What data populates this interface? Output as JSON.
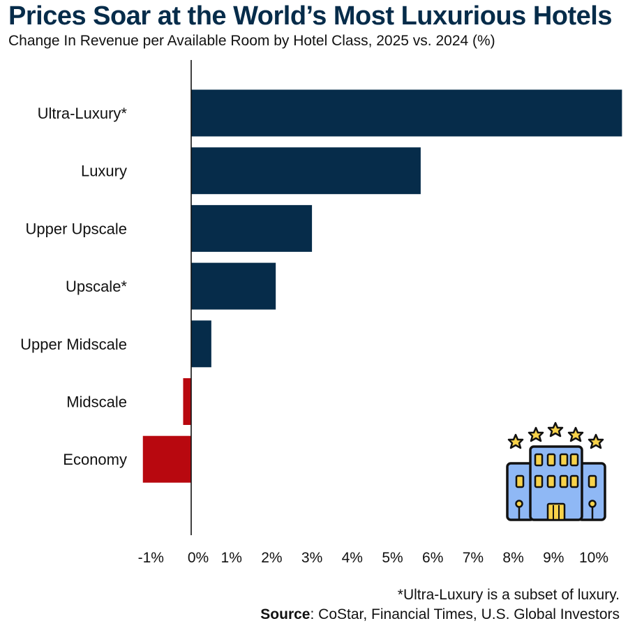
{
  "title": "Prices Soar at the World’s Most Luxurious Hotels",
  "subtitle": "Change In Revenue per Available Room by Hotel Class, 2025 vs. 2024 (%)",
  "footnote": "*Ultra-Luxury is a subset of luxury.",
  "source": {
    "label": "Source",
    "text": ": CoStar, Financial Times, U.S. Global Investors"
  },
  "colors": {
    "title": "#062c4a",
    "positive_bar": "#062c4a",
    "negative_bar": "#b8080f",
    "icon_building": "#8fb8f5",
    "icon_windows": "#f7d24a",
    "icon_outline": "#111111"
  },
  "icon": "hotel-building-icon",
  "chart_data": {
    "type": "bar",
    "orientation": "horizontal",
    "categories": [
      "Ultra-Luxury*",
      "Luxury",
      "Upper Upscale",
      "Upscale*",
      "Upper Midscale",
      "Midscale",
      "Economy"
    ],
    "values": [
      10.7,
      5.7,
      3.0,
      2.1,
      0.5,
      -0.2,
      -1.2
    ],
    "xlim": [
      -1.5,
      10.7
    ],
    "xticks": [
      -1,
      0,
      1,
      2,
      3,
      4,
      5,
      6,
      7,
      8,
      9,
      10
    ],
    "xtick_labels": [
      "-1%",
      "0%",
      "1%",
      "2%",
      "3%",
      "4%",
      "5%",
      "6%",
      "7%",
      "8%",
      "9%",
      "10%"
    ],
    "grid": false,
    "legend": "none"
  }
}
